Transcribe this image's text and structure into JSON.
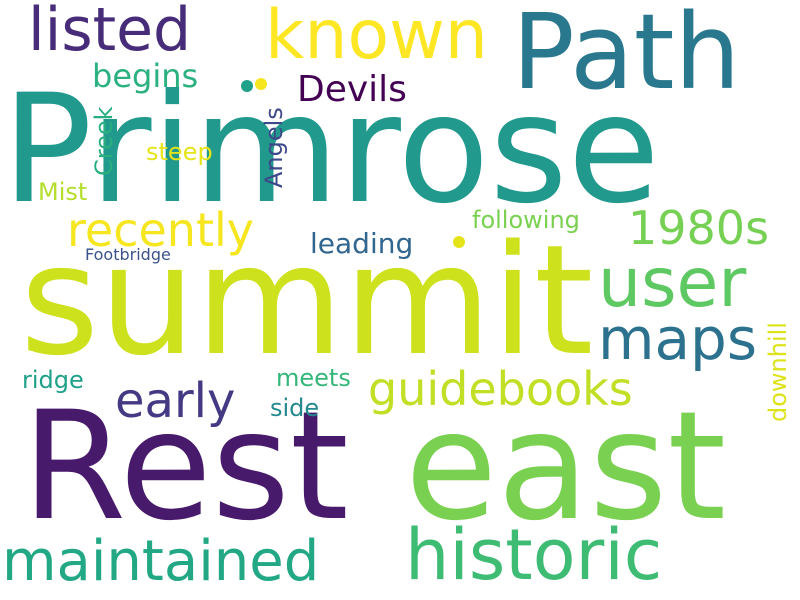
{
  "cloud": {
    "words": [
      {
        "text": "Primrose",
        "color": "#21998d"
      },
      {
        "text": "summit",
        "color": "#cde11d"
      },
      {
        "text": "Rest",
        "color": "#481a6c"
      },
      {
        "text": "east",
        "color": "#7ad151"
      },
      {
        "text": "Path",
        "color": "#2a788e"
      },
      {
        "text": "known",
        "color": "#fde725"
      },
      {
        "text": "listed",
        "color": "#472c7a"
      },
      {
        "text": "historic",
        "color": "#3fbc73"
      },
      {
        "text": "maintained",
        "color": "#22a884"
      },
      {
        "text": "user",
        "color": "#5ec962"
      },
      {
        "text": "maps",
        "color": "#2c728e"
      },
      {
        "text": "guidebooks",
        "color": "#c0df25"
      },
      {
        "text": "recently",
        "color": "#f5e61f"
      },
      {
        "text": "1980s",
        "color": "#75d054"
      },
      {
        "text": "early",
        "color": "#443983"
      },
      {
        "text": "Devils",
        "color": "#440154"
      },
      {
        "text": "begins",
        "color": "#2bb07f"
      },
      {
        "text": "leading",
        "color": "#31668e"
      },
      {
        "text": "following",
        "color": "#7ad151"
      },
      {
        "text": "Angels",
        "color": "#3e4989"
      },
      {
        "text": "Creek",
        "color": "#29af7f"
      },
      {
        "text": "steep",
        "color": "#e5e419"
      },
      {
        "text": "Mist",
        "color": "#b5de2b"
      },
      {
        "text": "Footbridge",
        "color": "#3b528b"
      },
      {
        "text": "ridge",
        "color": "#1fa088"
      },
      {
        "text": "meets",
        "color": "#35b779"
      },
      {
        "text": "side",
        "color": "#23898e"
      },
      {
        "text": "downhill",
        "color": "#dde318"
      }
    ]
  }
}
